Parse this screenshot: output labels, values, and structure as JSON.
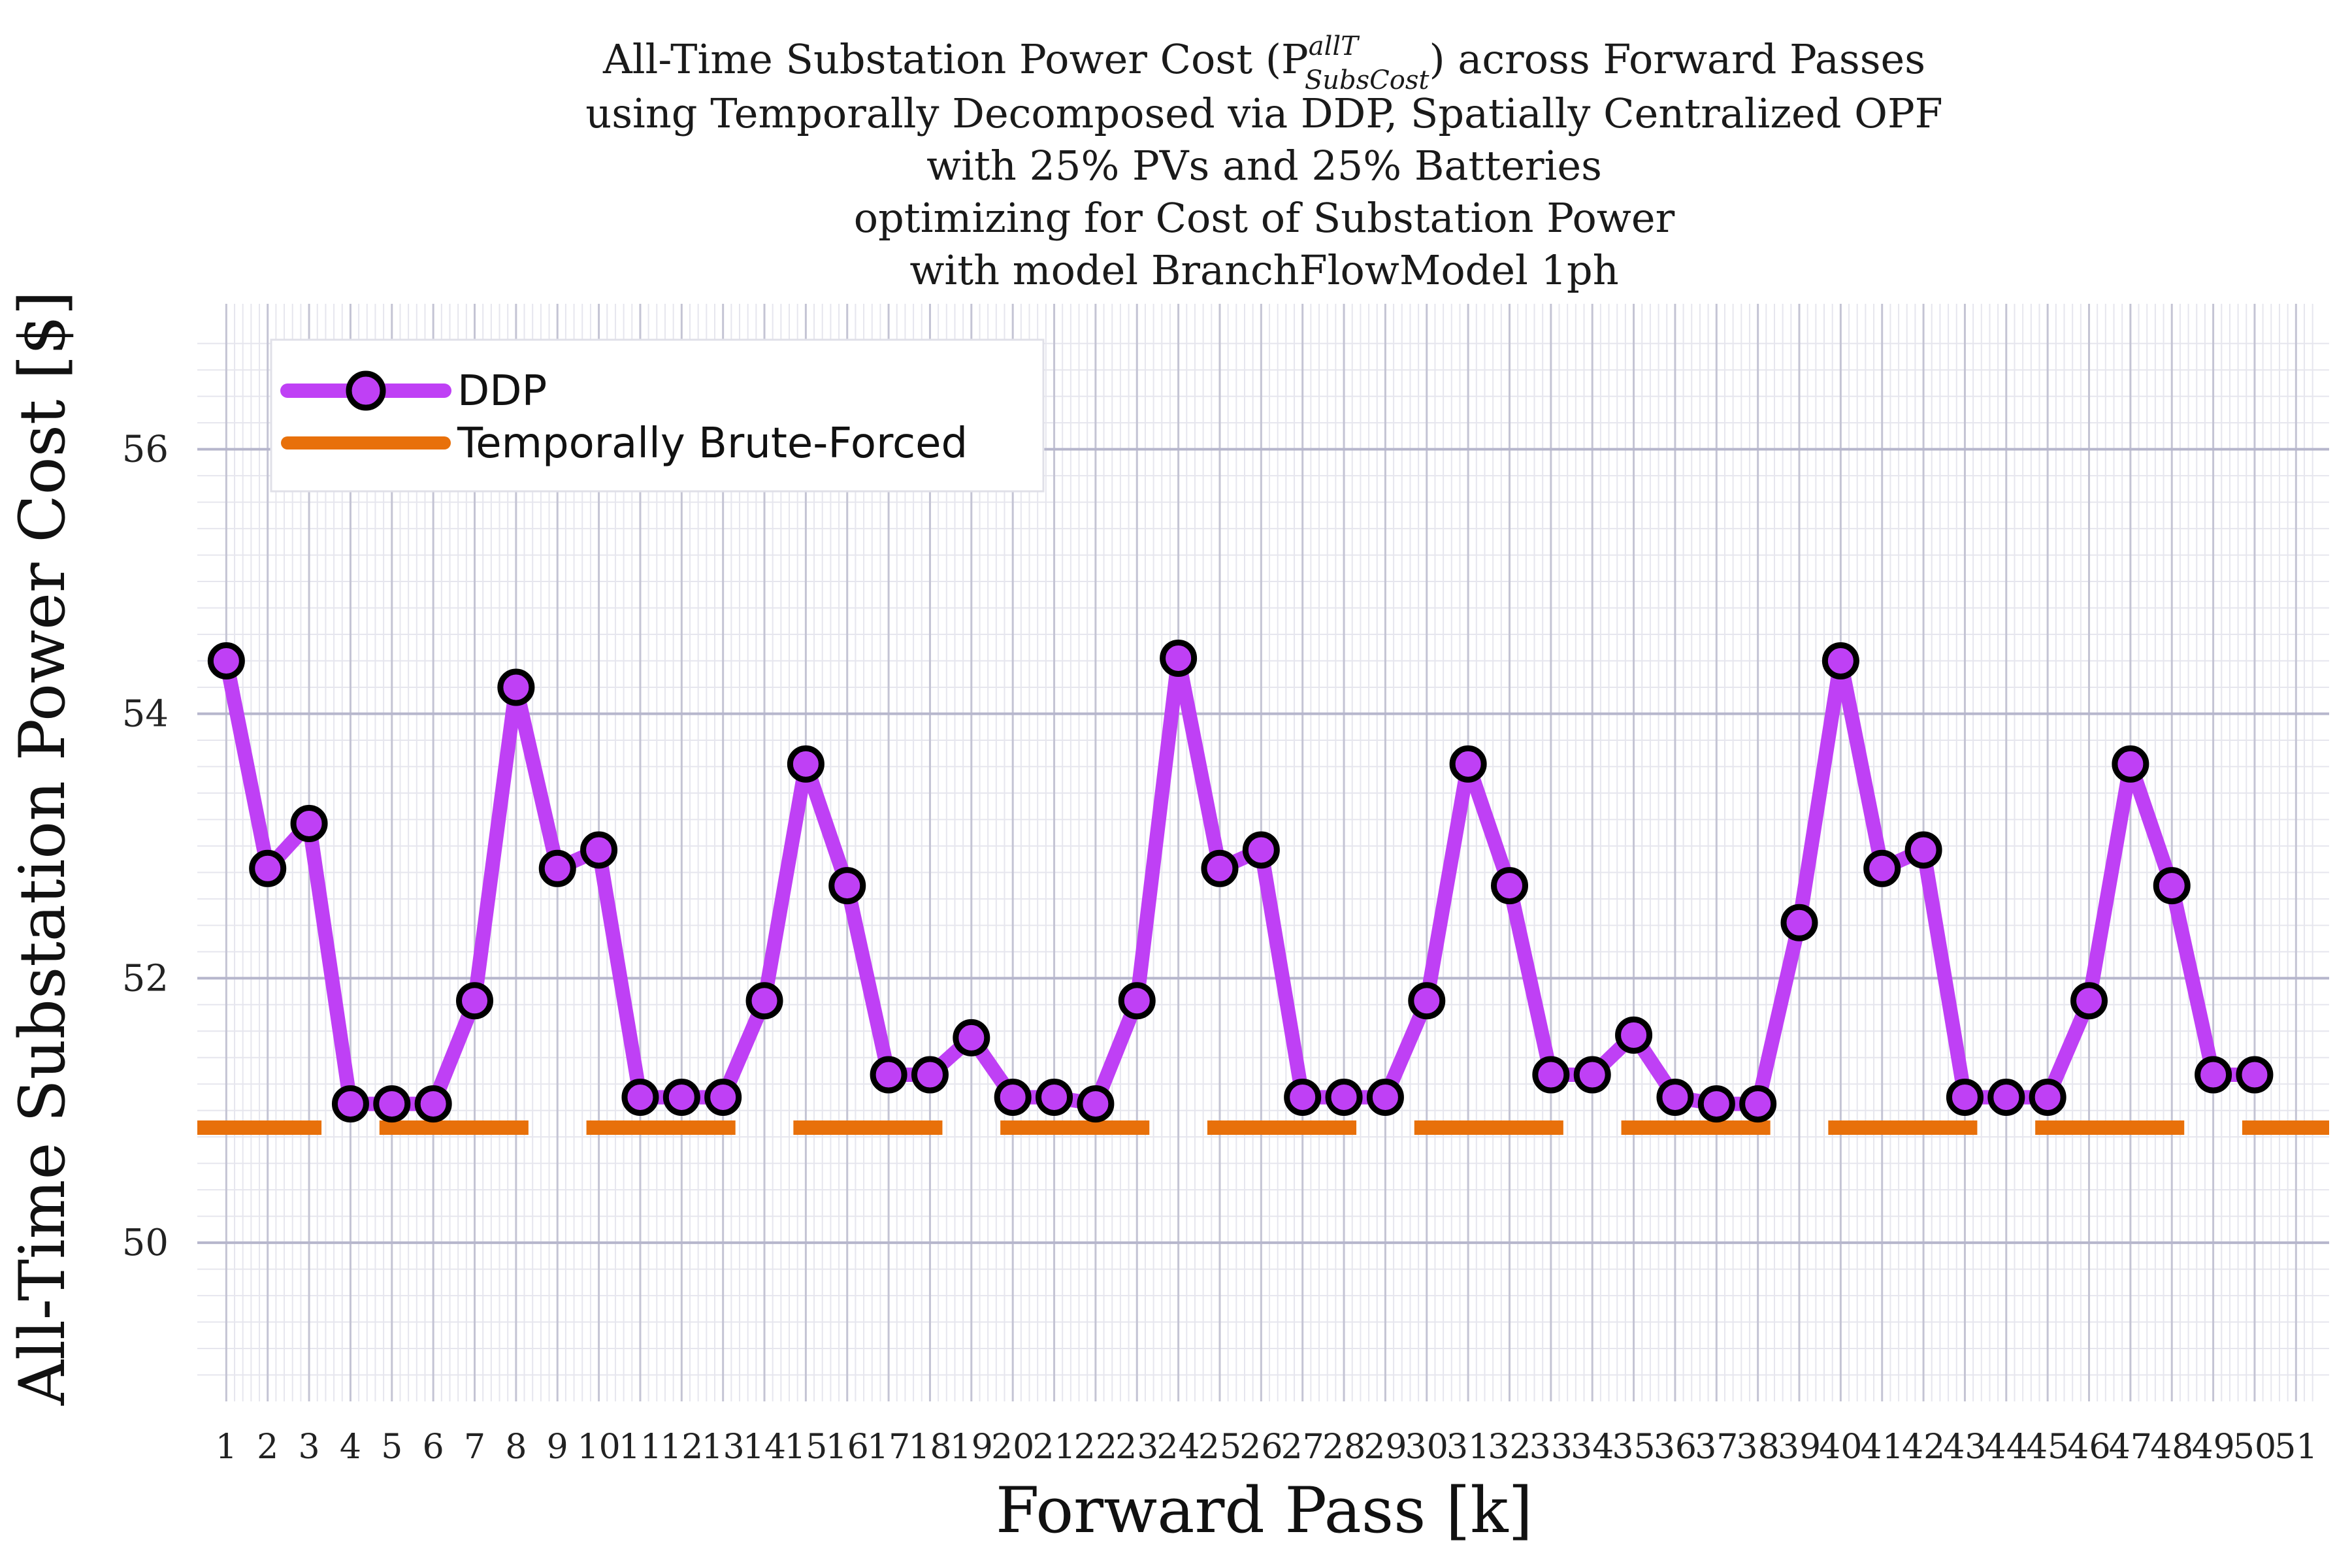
{
  "chart_data": {
    "type": "line",
    "title_lines": [
      "All-Time Substation Power Cost (P",
      "using Temporally Decomposed via DDP, Spatially Centralized OPF",
      "with 25% PVs and 25% Batteries",
      "optimizing for Cost of Substation Power",
      "with model BranchFlowModel 1ph"
    ],
    "title_symbol_sup": "allT",
    "title_symbol_sub": "SubsCost",
    "title_line1_tail": ") across Forward Passes",
    "xlabel": "Forward Pass [k]",
    "ylabel": "All-Time Substation Power Cost [$]",
    "xlim": [
      0.3,
      51.8
    ],
    "ylim": [
      48.8,
      57.1
    ],
    "yticks": [
      50,
      52,
      54,
      56
    ],
    "x": [
      1,
      2,
      3,
      4,
      5,
      6,
      7,
      8,
      9,
      10,
      11,
      12,
      13,
      14,
      15,
      16,
      17,
      18,
      19,
      20,
      21,
      22,
      23,
      24,
      25,
      26,
      27,
      28,
      29,
      30,
      31,
      32,
      33,
      34,
      35,
      36,
      37,
      38,
      39,
      40,
      41,
      42,
      43,
      44,
      45,
      46,
      47,
      48,
      49,
      50,
      51
    ],
    "grid": true,
    "legend_position": "top-left",
    "series": [
      {
        "name": "DDP",
        "color": "#bf40f5",
        "marker": "circle",
        "values": [
          54.4,
          52.83,
          53.17,
          51.05,
          51.05,
          51.05,
          51.83,
          54.2,
          52.83,
          52.97,
          51.1,
          51.1,
          51.1,
          51.83,
          53.62,
          52.7,
          51.27,
          51.27,
          51.55,
          51.1,
          51.1,
          51.05,
          51.83,
          54.42,
          52.83,
          52.97,
          51.1,
          51.1,
          51.1,
          51.83,
          53.62,
          52.7,
          51.27,
          51.27,
          51.57,
          51.1,
          51.05,
          51.05,
          52.42,
          54.4,
          52.83,
          52.97,
          51.1,
          51.1,
          51.1,
          51.83,
          53.62,
          52.7,
          51.27,
          51.27,
          null
        ]
      },
      {
        "name": "Temporally Brute-Forced",
        "color": "#e8700a",
        "style": "dashed-segments",
        "value": 50.87,
        "segments": [
          [
            0.3,
            3.3
          ],
          [
            4.7,
            8.3
          ],
          [
            9.7,
            13.3
          ],
          [
            14.7,
            18.3
          ],
          [
            19.7,
            23.3
          ],
          [
            24.7,
            28.3
          ],
          [
            29.7,
            33.3
          ],
          [
            34.7,
            38.3
          ],
          [
            39.7,
            43.3
          ],
          [
            44.7,
            48.3
          ],
          [
            49.7,
            51.8
          ]
        ]
      }
    ]
  }
}
